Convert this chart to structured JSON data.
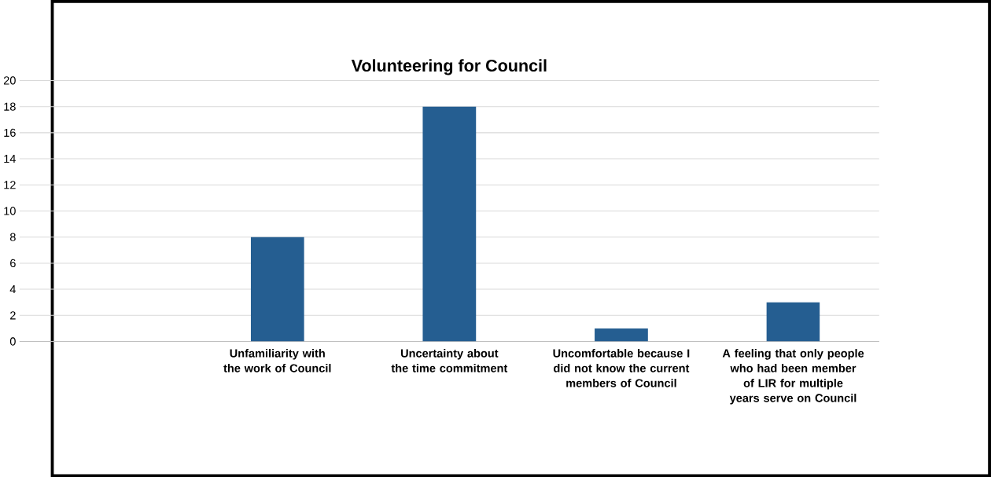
{
  "chart_data": {
    "type": "bar",
    "title": "Volunteering for Council",
    "categories": [
      null,
      "Unfamiliarity with the work of Council",
      "Uncertainty about the time commitment",
      "Uncomfortable because I did not know the current members of Council",
      "A feeling that only people who had been member of LIR for multiple years serve on Council"
    ],
    "values": [
      null,
      8,
      18,
      1,
      3
    ],
    "color": "#255e91",
    "ylim": [
      0,
      20
    ],
    "yticks": [
      0,
      2,
      4,
      6,
      8,
      10,
      12,
      14,
      16,
      18,
      20
    ],
    "grid": "y"
  }
}
